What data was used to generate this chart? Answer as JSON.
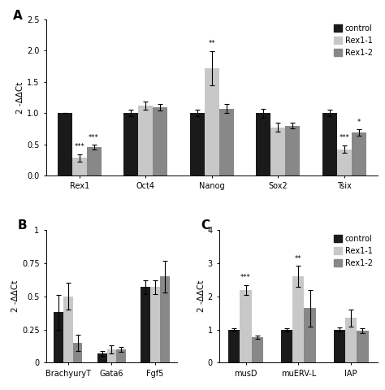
{
  "panel_A": {
    "categories": [
      "Rex1",
      "Oct4",
      "Nanog",
      "Sox2",
      "Tsix"
    ],
    "control": [
      1.0,
      1.0,
      1.0,
      1.0,
      1.0
    ],
    "rex1_1": [
      0.28,
      1.12,
      1.72,
      0.77,
      0.42
    ],
    "rex1_2": [
      0.46,
      1.09,
      1.07,
      0.8,
      0.69
    ],
    "control_err": [
      0.0,
      0.05,
      0.05,
      0.07,
      0.05
    ],
    "rex1_1_err": [
      0.06,
      0.07,
      0.27,
      0.07,
      0.06
    ],
    "rex1_2_err": [
      0.04,
      0.05,
      0.07,
      0.04,
      0.05
    ],
    "annotations": {
      "rex1_1": [
        "***",
        "",
        "**",
        "",
        "***"
      ],
      "rex1_2": [
        "***",
        "",
        "",
        "",
        "*"
      ]
    },
    "ylim": [
      0.0,
      2.5
    ],
    "yticks": [
      0.0,
      0.5,
      1.0,
      1.5,
      2.0,
      2.5
    ],
    "ylabel": "2 -ΔΔCt"
  },
  "panel_B": {
    "categories": [
      "BrachyuryT",
      "Gata6",
      "Fgf5"
    ],
    "control": [
      0.38,
      0.07,
      0.57
    ],
    "rex1_1": [
      0.5,
      0.1,
      0.57
    ],
    "rex1_2": [
      0.15,
      0.1,
      0.65
    ],
    "control_err": [
      0.13,
      0.02,
      0.05
    ],
    "rex1_1_err": [
      0.1,
      0.03,
      0.05
    ],
    "rex1_2_err": [
      0.06,
      0.02,
      0.12
    ],
    "ylim": [
      0.0,
      1.0
    ],
    "yticks": [
      0.0,
      0.25,
      0.5,
      0.75,
      1.0
    ],
    "yticklabels": [
      "0",
      "0.25",
      "0.5",
      "0.75",
      "1"
    ],
    "ylabel": "2 -ΔΔCt"
  },
  "panel_C": {
    "categories": [
      "musD",
      "muERV-L",
      "IAP"
    ],
    "control": [
      1.0,
      1.0,
      1.0
    ],
    "rex1_1": [
      2.2,
      2.6,
      1.35
    ],
    "rex1_2": [
      0.77,
      1.65,
      0.97
    ],
    "control_err": [
      0.05,
      0.05,
      0.07
    ],
    "rex1_1_err": [
      0.15,
      0.32,
      0.25
    ],
    "rex1_2_err": [
      0.05,
      0.55,
      0.08
    ],
    "annotations": {
      "rex1_1": [
        "***",
        "**",
        ""
      ],
      "rex1_2": [
        "",
        "",
        ""
      ]
    },
    "ylim": [
      0.0,
      4.0
    ],
    "yticks": [
      0.0,
      1.0,
      2.0,
      3.0,
      4.0
    ],
    "ylabel": "2 -ΔΔCt"
  },
  "colors": {
    "control": "#1a1a1a",
    "rex1_1": "#c8c8c8",
    "rex1_2": "#888888"
  },
  "bar_width": 0.22,
  "capsize": 2.5
}
